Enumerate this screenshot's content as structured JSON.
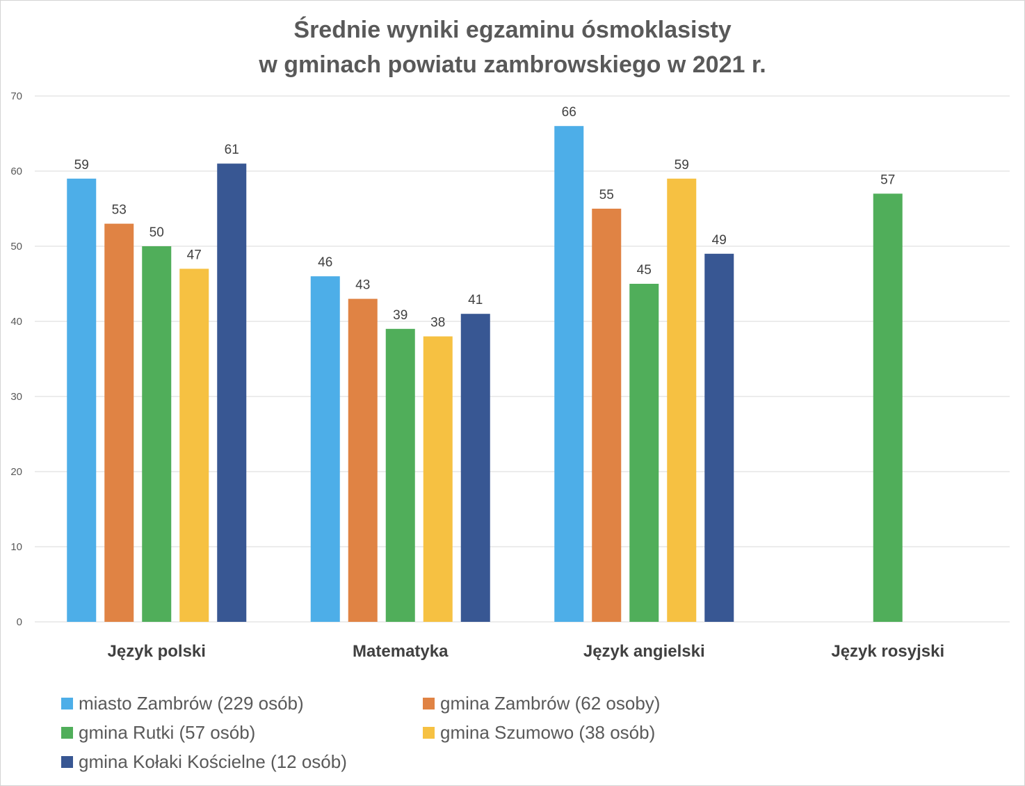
{
  "chart_data": {
    "type": "bar",
    "title_lines": [
      "Średnie wyniki egzaminu ósmoklasisty",
      "w gminach powiatu zambrowskiego w 2021 r."
    ],
    "categories": [
      "Język polski",
      "Matematyka",
      "Język angielski",
      "Język rosyjski"
    ],
    "ylim": [
      0,
      70
    ],
    "yticks": [
      0,
      10,
      20,
      30,
      40,
      50,
      60,
      70
    ],
    "grid": true,
    "legend_position": "bottom",
    "series": [
      {
        "name": "miasto Zambrów (229 osób)",
        "color": "#4DAEE8",
        "values": [
          59,
          46,
          66,
          null
        ],
        "labels": [
          "59",
          "46",
          "66",
          ""
        ]
      },
      {
        "name": "gmina Zambrów (62 osoby)",
        "color": "#E08344",
        "values": [
          53,
          43,
          55,
          null
        ],
        "labels": [
          "53",
          "43",
          "55",
          ""
        ]
      },
      {
        "name": "gmina Rutki (57 osób)",
        "color": "#50AE5A",
        "values": [
          50,
          39,
          45,
          57
        ],
        "labels": [
          "50",
          "39",
          "45",
          "57"
        ]
      },
      {
        "name": "gmina Szumowo (38 osób)",
        "color": "#F6C142",
        "values": [
          47,
          38,
          59,
          null
        ],
        "labels": [
          "47",
          "38",
          "59",
          ""
        ]
      },
      {
        "name": "gmina Kołaki Kościelne (12 osób)",
        "color": "#385793",
        "values": [
          61,
          41,
          49,
          null
        ],
        "labels": [
          "61",
          "41",
          "49",
          ""
        ]
      }
    ]
  }
}
